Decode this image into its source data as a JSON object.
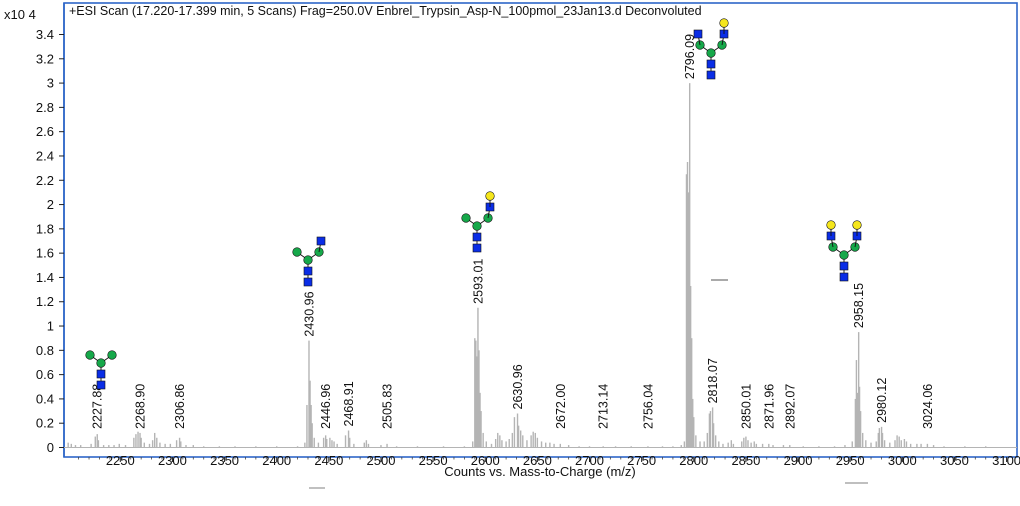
{
  "chart_data": {
    "type": "line",
    "title": "+ESI Scan (17.220-17.399 min, 5 Scans) Frag=250.0V Enbrel_Trypsin_Asp-N_100pmol_23Jan13.d  Deconvoluted",
    "xlabel": "Counts vs. Mass-to-Charge (m/z)",
    "ylabel": "",
    "y_multiplier_label": "x10 4",
    "xlim": [
      2196,
      3110
    ],
    "ylim": [
      0,
      3.5
    ],
    "x_ticks": [
      2250,
      2300,
      2350,
      2400,
      2450,
      2500,
      2550,
      2600,
      2650,
      2700,
      2750,
      2800,
      2850,
      2900,
      2950,
      3000,
      3050,
      3100
    ],
    "y_ticks": [
      0,
      0.2,
      0.4,
      0.6,
      0.8,
      1,
      1.2,
      1.4,
      1.6,
      1.8,
      2,
      2.2,
      2.4,
      2.6,
      2.8,
      3,
      3.2,
      3.4
    ],
    "grid": false,
    "series_color": "#b4b4b4",
    "peak_labels": [
      "2227.88",
      "2268.90",
      "2306.86",
      "2430.96",
      "2446.96",
      "2468.91",
      "2505.83",
      "2593.01",
      "2630.96",
      "2672.00",
      "2713.14",
      "2756.04",
      "2796.09",
      "2818.07",
      "2850.01",
      "2871.96",
      "2892.07",
      "2958.15",
      "2980.12",
      "3024.06"
    ],
    "peaks": [
      {
        "x": 2200,
        "y": 0.04
      },
      {
        "x": 2203,
        "y": 0.03
      },
      {
        "x": 2207,
        "y": 0.02
      },
      {
        "x": 2212,
        "y": 0.02
      },
      {
        "x": 2222,
        "y": 0.03
      },
      {
        "x": 2226,
        "y": 0.09
      },
      {
        "x": 2227.88,
        "y": 0.11
      },
      {
        "x": 2229,
        "y": 0.06
      },
      {
        "x": 2234,
        "y": 0.02
      },
      {
        "x": 2239,
        "y": 0.02
      },
      {
        "x": 2244,
        "y": 0.02
      },
      {
        "x": 2249,
        "y": 0.03
      },
      {
        "x": 2255,
        "y": 0.02
      },
      {
        "x": 2263,
        "y": 0.08
      },
      {
        "x": 2265,
        "y": 0.11
      },
      {
        "x": 2267,
        "y": 0.13
      },
      {
        "x": 2268.9,
        "y": 0.12
      },
      {
        "x": 2270,
        "y": 0.08
      },
      {
        "x": 2273,
        "y": 0.04
      },
      {
        "x": 2278,
        "y": 0.03
      },
      {
        "x": 2281,
        "y": 0.06
      },
      {
        "x": 2283,
        "y": 0.12
      },
      {
        "x": 2285,
        "y": 0.08
      },
      {
        "x": 2288,
        "y": 0.04
      },
      {
        "x": 2293,
        "y": 0.03
      },
      {
        "x": 2298,
        "y": 0.03
      },
      {
        "x": 2304,
        "y": 0.06
      },
      {
        "x": 2306.86,
        "y": 0.08
      },
      {
        "x": 2308,
        "y": 0.05
      },
      {
        "x": 2313,
        "y": 0.02
      },
      {
        "x": 2320,
        "y": 0.02
      },
      {
        "x": 2330,
        "y": 0.01
      },
      {
        "x": 2345,
        "y": 0.01
      },
      {
        "x": 2360,
        "y": 0.01
      },
      {
        "x": 2380,
        "y": 0.01
      },
      {
        "x": 2400,
        "y": 0.01
      },
      {
        "x": 2420,
        "y": 0.01
      },
      {
        "x": 2427,
        "y": 0.04
      },
      {
        "x": 2429,
        "y": 0.35
      },
      {
        "x": 2430.96,
        "y": 0.88
      },
      {
        "x": 2432,
        "y": 0.55
      },
      {
        "x": 2433,
        "y": 0.35
      },
      {
        "x": 2434,
        "y": 0.2
      },
      {
        "x": 2436,
        "y": 0.08
      },
      {
        "x": 2440,
        "y": 0.04
      },
      {
        "x": 2445,
        "y": 0.08
      },
      {
        "x": 2446.96,
        "y": 0.1
      },
      {
        "x": 2448,
        "y": 0.07
      },
      {
        "x": 2451,
        "y": 0.08
      },
      {
        "x": 2453,
        "y": 0.06
      },
      {
        "x": 2455,
        "y": 0.05
      },
      {
        "x": 2458,
        "y": 0.03
      },
      {
        "x": 2466,
        "y": 0.1
      },
      {
        "x": 2468.91,
        "y": 0.14
      },
      {
        "x": 2470,
        "y": 0.08
      },
      {
        "x": 2474,
        "y": 0.03
      },
      {
        "x": 2484,
        "y": 0.04
      },
      {
        "x": 2486,
        "y": 0.06
      },
      {
        "x": 2488,
        "y": 0.03
      },
      {
        "x": 2500,
        "y": 0.02
      },
      {
        "x": 2505.83,
        "y": 0.03
      },
      {
        "x": 2515,
        "y": 0.01
      },
      {
        "x": 2535,
        "y": 0.01
      },
      {
        "x": 2560,
        "y": 0.01
      },
      {
        "x": 2580,
        "y": 0.01
      },
      {
        "x": 2588,
        "y": 0.05
      },
      {
        "x": 2590,
        "y": 0.9
      },
      {
        "x": 2591,
        "y": 0.88
      },
      {
        "x": 2592,
        "y": 0.75
      },
      {
        "x": 2593.01,
        "y": 1.15
      },
      {
        "x": 2594,
        "y": 0.8
      },
      {
        "x": 2595,
        "y": 0.45
      },
      {
        "x": 2596,
        "y": 0.3
      },
      {
        "x": 2598,
        "y": 0.12
      },
      {
        "x": 2601,
        "y": 0.05
      },
      {
        "x": 2606,
        "y": 0.03
      },
      {
        "x": 2610,
        "y": 0.07
      },
      {
        "x": 2612,
        "y": 0.12
      },
      {
        "x": 2614,
        "y": 0.1
      },
      {
        "x": 2616,
        "y": 0.06
      },
      {
        "x": 2620,
        "y": 0.05
      },
      {
        "x": 2623,
        "y": 0.07
      },
      {
        "x": 2626,
        "y": 0.12
      },
      {
        "x": 2628,
        "y": 0.25
      },
      {
        "x": 2630.96,
        "y": 0.28
      },
      {
        "x": 2632,
        "y": 0.18
      },
      {
        "x": 2634,
        "y": 0.14
      },
      {
        "x": 2636,
        "y": 0.1
      },
      {
        "x": 2640,
        "y": 0.06
      },
      {
        "x": 2644,
        "y": 0.1
      },
      {
        "x": 2646,
        "y": 0.13
      },
      {
        "x": 2648,
        "y": 0.12
      },
      {
        "x": 2650,
        "y": 0.08
      },
      {
        "x": 2654,
        "y": 0.05
      },
      {
        "x": 2658,
        "y": 0.04
      },
      {
        "x": 2662,
        "y": 0.04
      },
      {
        "x": 2666,
        "y": 0.03
      },
      {
        "x": 2672,
        "y": 0.03
      },
      {
        "x": 2680,
        "y": 0.02
      },
      {
        "x": 2690,
        "y": 0.01
      },
      {
        "x": 2700,
        "y": 0.01
      },
      {
        "x": 2713.14,
        "y": 0.01
      },
      {
        "x": 2725,
        "y": 0.01
      },
      {
        "x": 2740,
        "y": 0.01
      },
      {
        "x": 2756.04,
        "y": 0.01
      },
      {
        "x": 2770,
        "y": 0.01
      },
      {
        "x": 2780,
        "y": 0.01
      },
      {
        "x": 2788,
        "y": 0.02
      },
      {
        "x": 2791,
        "y": 0.05
      },
      {
        "x": 2793,
        "y": 2.25
      },
      {
        "x": 2794,
        "y": 2.35
      },
      {
        "x": 2795,
        "y": 2.1
      },
      {
        "x": 2796.09,
        "y": 3.0
      },
      {
        "x": 2797,
        "y": 1.33
      },
      {
        "x": 2798,
        "y": 0.9
      },
      {
        "x": 2799,
        "y": 0.4
      },
      {
        "x": 2800,
        "y": 0.25
      },
      {
        "x": 2802,
        "y": 0.1
      },
      {
        "x": 2806,
        "y": 0.05
      },
      {
        "x": 2810,
        "y": 0.05
      },
      {
        "x": 2813,
        "y": 0.12
      },
      {
        "x": 2815,
        "y": 0.28
      },
      {
        "x": 2816,
        "y": 0.3
      },
      {
        "x": 2818.07,
        "y": 0.33
      },
      {
        "x": 2819,
        "y": 0.2
      },
      {
        "x": 2821,
        "y": 0.1
      },
      {
        "x": 2824,
        "y": 0.05
      },
      {
        "x": 2828,
        "y": 0.03
      },
      {
        "x": 2833,
        "y": 0.04
      },
      {
        "x": 2836,
        "y": 0.06
      },
      {
        "x": 2838,
        "y": 0.03
      },
      {
        "x": 2846,
        "y": 0.05
      },
      {
        "x": 2848,
        "y": 0.08
      },
      {
        "x": 2850.01,
        "y": 0.09
      },
      {
        "x": 2852,
        "y": 0.06
      },
      {
        "x": 2855,
        "y": 0.04
      },
      {
        "x": 2858,
        "y": 0.05
      },
      {
        "x": 2860,
        "y": 0.03
      },
      {
        "x": 2866,
        "y": 0.03
      },
      {
        "x": 2871.96,
        "y": 0.03
      },
      {
        "x": 2876,
        "y": 0.02
      },
      {
        "x": 2886,
        "y": 0.02
      },
      {
        "x": 2892.07,
        "y": 0.02
      },
      {
        "x": 2905,
        "y": 0.01
      },
      {
        "x": 2920,
        "y": 0.01
      },
      {
        "x": 2935,
        "y": 0.01
      },
      {
        "x": 2945,
        "y": 0.02
      },
      {
        "x": 2952,
        "y": 0.05
      },
      {
        "x": 2955,
        "y": 0.4
      },
      {
        "x": 2956,
        "y": 0.72
      },
      {
        "x": 2957,
        "y": 0.45
      },
      {
        "x": 2958.15,
        "y": 0.95
      },
      {
        "x": 2959,
        "y": 0.5
      },
      {
        "x": 2960,
        "y": 0.3
      },
      {
        "x": 2962,
        "y": 0.12
      },
      {
        "x": 2965,
        "y": 0.06
      },
      {
        "x": 2970,
        "y": 0.04
      },
      {
        "x": 2975,
        "y": 0.05
      },
      {
        "x": 2977,
        "y": 0.12
      },
      {
        "x": 2978,
        "y": 0.16
      },
      {
        "x": 2980.12,
        "y": 0.17
      },
      {
        "x": 2981,
        "y": 0.12
      },
      {
        "x": 2983,
        "y": 0.06
      },
      {
        "x": 2988,
        "y": 0.04
      },
      {
        "x": 2993,
        "y": 0.06
      },
      {
        "x": 2995,
        "y": 0.1
      },
      {
        "x": 2997,
        "y": 0.09
      },
      {
        "x": 2999,
        "y": 0.06
      },
      {
        "x": 3002,
        "y": 0.07
      },
      {
        "x": 3004,
        "y": 0.05
      },
      {
        "x": 3008,
        "y": 0.03
      },
      {
        "x": 3014,
        "y": 0.03
      },
      {
        "x": 3018,
        "y": 0.03
      },
      {
        "x": 3024.06,
        "y": 0.03
      },
      {
        "x": 3030,
        "y": 0.02
      },
      {
        "x": 3040,
        "y": 0.01
      },
      {
        "x": 3060,
        "y": 0.01
      },
      {
        "x": 3080,
        "y": 0.01
      }
    ],
    "glycan_colors": {
      "glcnac": "#0a2de6",
      "mannose": "#16a84a",
      "galactose": "#f5e61c"
    }
  }
}
